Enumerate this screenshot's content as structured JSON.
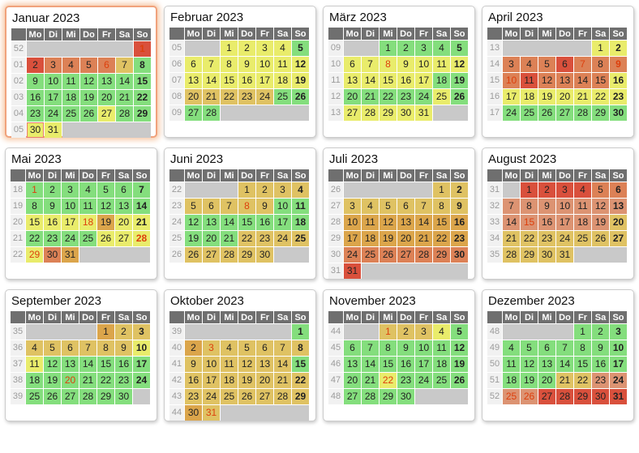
{
  "palette": {
    "header_bg": "#6f6f6f",
    "header_text": "#ffffff",
    "week_bg": "#f1f1f1",
    "week_text": "#9b9b9b",
    "day_text": "#222222",
    "holiday_text": "#dd3f0c",
    "today_border": "#e87d6d",
    "current_month_border": "#f0a27c",
    "current_month_glow": "#f7cbaa",
    "empty_cell": "#c9c9c9",
    "scale": {
      "g": "#84de7d",
      "y": "#e9ec6b",
      "t": "#dfc263",
      "a": "#dba54b",
      "s": "#dc9372",
      "o": "#dc8156",
      "r": "#d9503c"
    }
  },
  "day_headers": [
    "Mo",
    "Di",
    "Mi",
    "Do",
    "Fr",
    "Sa",
    "So"
  ],
  "months": [
    {
      "title": "Januar 2023",
      "current": true,
      "weeks": [
        {
          "n": "52",
          "days": [
            "",
            "",
            "",
            "",
            "",
            "",
            "1|r|h"
          ]
        },
        {
          "n": "01",
          "days": [
            "2|r",
            "3|o",
            "4|o",
            "5|o",
            "6|o|h",
            "7|t",
            "8|g"
          ]
        },
        {
          "n": "02",
          "days": [
            "9|g",
            "10|g",
            "11|g",
            "12|g",
            "13|g",
            "14|g",
            "15|g"
          ]
        },
        {
          "n": "03",
          "days": [
            "16|g",
            "17|g",
            "18|g",
            "19|g",
            "20|g",
            "21|g",
            "22|g"
          ]
        },
        {
          "n": "04",
          "days": [
            "23|g",
            "24|g",
            "25|g",
            "26|g",
            "27|y",
            "28|g",
            "29|g"
          ]
        },
        {
          "n": "05",
          "days": [
            "30|y|n",
            "31|y",
            "",
            "",
            "",
            "",
            ""
          ]
        }
      ]
    },
    {
      "title": "Februar 2023",
      "current": false,
      "weeks": [
        {
          "n": "05",
          "days": [
            "",
            "",
            "1|y",
            "2|y",
            "3|y",
            "4|y",
            "5|g"
          ]
        },
        {
          "n": "06",
          "days": [
            "6|y",
            "7|y",
            "8|y",
            "9|y",
            "10|y",
            "11|y",
            "12|y"
          ]
        },
        {
          "n": "07",
          "days": [
            "13|y",
            "14|y",
            "15|y",
            "16|y",
            "17|y",
            "18|y",
            "19|y"
          ]
        },
        {
          "n": "08",
          "days": [
            "20|t",
            "21|t",
            "22|t",
            "23|t",
            "24|t",
            "25|g",
            "26|g"
          ]
        },
        {
          "n": "09",
          "days": [
            "27|g",
            "28|g",
            "",
            "",
            "",
            "",
            ""
          ]
        }
      ]
    },
    {
      "title": "März 2023",
      "current": false,
      "weeks": [
        {
          "n": "09",
          "days": [
            "",
            "",
            "1|g",
            "2|g",
            "3|g",
            "4|g",
            "5|g"
          ]
        },
        {
          "n": "10",
          "days": [
            "6|y",
            "7|y",
            "8|y|h",
            "9|y",
            "10|y",
            "11|y",
            "12|y"
          ]
        },
        {
          "n": "11",
          "days": [
            "13|y",
            "14|y",
            "15|y",
            "16|y",
            "17|y",
            "18|g",
            "19|g"
          ]
        },
        {
          "n": "12",
          "days": [
            "20|g",
            "21|g",
            "22|g",
            "23|g",
            "24|g",
            "25|y",
            "26|g"
          ]
        },
        {
          "n": "13",
          "days": [
            "27|y",
            "28|y",
            "29|y",
            "30|y",
            "31|y",
            "",
            ""
          ]
        }
      ]
    },
    {
      "title": "April 2023",
      "current": false,
      "weeks": [
        {
          "n": "13",
          "days": [
            "",
            "",
            "",
            "",
            "",
            "1|y",
            "2|y"
          ]
        },
        {
          "n": "14",
          "days": [
            "3|o",
            "4|o",
            "5|o",
            "6|r",
            "7|o|h",
            "8|o",
            "9|o|h"
          ]
        },
        {
          "n": "15",
          "days": [
            "10|o|h",
            "11|r",
            "12|o",
            "13|o",
            "14|o",
            "15|o",
            "16|y"
          ]
        },
        {
          "n": "16",
          "days": [
            "17|y",
            "18|y",
            "19|y",
            "20|y",
            "21|y",
            "22|y",
            "23|y"
          ]
        },
        {
          "n": "17",
          "days": [
            "24|g",
            "25|g",
            "26|g",
            "27|g",
            "28|g",
            "29|g",
            "30|g"
          ]
        }
      ]
    },
    {
      "title": "Mai 2023",
      "current": false,
      "weeks": [
        {
          "n": "18",
          "days": [
            "1|g|h",
            "2|g",
            "3|g",
            "4|g",
            "5|g",
            "6|g",
            "7|g"
          ]
        },
        {
          "n": "19",
          "days": [
            "8|g",
            "9|g",
            "10|g",
            "11|g",
            "12|g",
            "13|g",
            "14|g"
          ]
        },
        {
          "n": "20",
          "days": [
            "15|y",
            "16|y",
            "17|y",
            "18|y|h",
            "19|a",
            "20|y",
            "21|y"
          ]
        },
        {
          "n": "21",
          "days": [
            "22|g",
            "23|g",
            "24|g",
            "25|g",
            "26|y",
            "27|y",
            "28|y|h"
          ]
        },
        {
          "n": "22",
          "days": [
            "29|y|h",
            "30|o",
            "31|a",
            "",
            "",
            "",
            ""
          ]
        }
      ]
    },
    {
      "title": "Juni 2023",
      "current": false,
      "weeks": [
        {
          "n": "22",
          "days": [
            "",
            "",
            "",
            "1|t",
            "2|t",
            "3|t",
            "4|t"
          ]
        },
        {
          "n": "23",
          "days": [
            "5|t",
            "6|t",
            "7|t",
            "8|t|h",
            "9|t",
            "10|g",
            "11|g"
          ]
        },
        {
          "n": "24",
          "days": [
            "12|g",
            "13|g",
            "14|g",
            "15|g",
            "16|g",
            "17|g",
            "18|g"
          ]
        },
        {
          "n": "25",
          "days": [
            "19|g",
            "20|g",
            "21|g",
            "22|t",
            "23|t",
            "24|t",
            "25|t"
          ]
        },
        {
          "n": "26",
          "days": [
            "26|t",
            "27|t",
            "28|t",
            "29|t",
            "30|t",
            "",
            ""
          ]
        }
      ]
    },
    {
      "title": "Juli 2023",
      "current": false,
      "weeks": [
        {
          "n": "26",
          "days": [
            "",
            "",
            "",
            "",
            "",
            "1|t",
            "2|t"
          ]
        },
        {
          "n": "27",
          "days": [
            "3|t",
            "4|t",
            "5|t",
            "6|t",
            "7|t",
            "8|t",
            "9|t"
          ]
        },
        {
          "n": "28",
          "days": [
            "10|a",
            "11|a",
            "12|a",
            "13|a",
            "14|a",
            "15|a",
            "16|a"
          ]
        },
        {
          "n": "29",
          "days": [
            "17|a",
            "18|a",
            "19|a",
            "20|a",
            "21|a",
            "22|a",
            "23|a"
          ]
        },
        {
          "n": "30",
          "days": [
            "24|o",
            "25|o",
            "26|o",
            "27|o",
            "28|o",
            "29|o",
            "30|o"
          ]
        },
        {
          "n": "31",
          "days": [
            "31|r",
            "",
            "",
            "",
            "",
            "",
            ""
          ]
        }
      ]
    },
    {
      "title": "August 2023",
      "current": false,
      "weeks": [
        {
          "n": "31",
          "days": [
            "",
            "1|r",
            "2|r",
            "3|r",
            "4|r",
            "5|o",
            "6|o"
          ]
        },
        {
          "n": "32",
          "days": [
            "7|s",
            "8|s",
            "9|s",
            "10|s",
            "11|s",
            "12|s",
            "13|s"
          ]
        },
        {
          "n": "33",
          "days": [
            "14|s",
            "15|s|h",
            "16|s",
            "17|s",
            "18|s",
            "19|s",
            "20|t"
          ]
        },
        {
          "n": "34",
          "days": [
            "21|t",
            "22|t",
            "23|t",
            "24|t",
            "25|t",
            "26|t",
            "27|t"
          ]
        },
        {
          "n": "35",
          "days": [
            "28|t",
            "29|t",
            "30|t",
            "31|t",
            "",
            "",
            ""
          ]
        }
      ]
    },
    {
      "title": "September 2023",
      "current": false,
      "weeks": [
        {
          "n": "35",
          "days": [
            "",
            "",
            "",
            "",
            "1|a",
            "2|t",
            "3|t"
          ]
        },
        {
          "n": "36",
          "days": [
            "4|t",
            "5|t",
            "6|t",
            "7|t",
            "8|t",
            "9|t",
            "10|y"
          ]
        },
        {
          "n": "37",
          "days": [
            "11|y",
            "12|g",
            "13|g",
            "14|g",
            "15|g",
            "16|g",
            "17|g"
          ]
        },
        {
          "n": "38",
          "days": [
            "18|g",
            "19|g",
            "20|g|h",
            "21|g",
            "22|g",
            "23|g",
            "24|g"
          ]
        },
        {
          "n": "39",
          "days": [
            "25|g",
            "26|g",
            "27|g",
            "28|g",
            "29|g",
            "30|g",
            ""
          ]
        }
      ]
    },
    {
      "title": "Oktober 2023",
      "current": false,
      "weeks": [
        {
          "n": "39",
          "days": [
            "",
            "",
            "",
            "",
            "",
            "",
            "1|g"
          ]
        },
        {
          "n": "40",
          "days": [
            "2|a",
            "3|t|h",
            "4|t",
            "5|t",
            "6|t",
            "7|t",
            "8|t"
          ]
        },
        {
          "n": "41",
          "days": [
            "9|t",
            "10|t",
            "11|t",
            "12|t",
            "13|t",
            "14|t",
            "15|g"
          ]
        },
        {
          "n": "42",
          "days": [
            "16|t",
            "17|t",
            "18|t",
            "19|t",
            "20|t",
            "21|t",
            "22|t"
          ]
        },
        {
          "n": "43",
          "days": [
            "23|t",
            "24|t",
            "25|t",
            "26|t",
            "27|t",
            "28|t",
            "29|t"
          ]
        },
        {
          "n": "44",
          "days": [
            "30|a",
            "31|t|h",
            "",
            "",
            "",
            "",
            ""
          ]
        }
      ]
    },
    {
      "title": "November 2023",
      "current": false,
      "weeks": [
        {
          "n": "44",
          "days": [
            "",
            "",
            "1|t|h",
            "2|t",
            "3|t",
            "4|y",
            "5|g"
          ]
        },
        {
          "n": "45",
          "days": [
            "6|g",
            "7|g",
            "8|g",
            "9|g",
            "10|g",
            "11|g",
            "12|g"
          ]
        },
        {
          "n": "46",
          "days": [
            "13|g",
            "14|g",
            "15|g",
            "16|g",
            "17|g",
            "18|g",
            "19|g"
          ]
        },
        {
          "n": "47",
          "days": [
            "20|g",
            "21|g",
            "22|y|h",
            "23|g",
            "24|g",
            "25|g",
            "26|g"
          ]
        },
        {
          "n": "48",
          "days": [
            "27|g",
            "28|g",
            "29|g",
            "30|g",
            "",
            "",
            ""
          ]
        }
      ]
    },
    {
      "title": "Dezember 2023",
      "current": false,
      "weeks": [
        {
          "n": "48",
          "days": [
            "",
            "",
            "",
            "",
            "1|g",
            "2|g",
            "3|g"
          ]
        },
        {
          "n": "49",
          "days": [
            "4|g",
            "5|g",
            "6|g",
            "7|g",
            "8|g",
            "9|g",
            "10|g"
          ]
        },
        {
          "n": "50",
          "days": [
            "11|g",
            "12|g",
            "13|g",
            "14|g",
            "15|g",
            "16|g",
            "17|g"
          ]
        },
        {
          "n": "51",
          "days": [
            "18|g",
            "19|g",
            "20|g",
            "21|t",
            "22|t",
            "23|s",
            "24|s"
          ]
        },
        {
          "n": "52",
          "days": [
            "25|s|h",
            "26|s|h",
            "27|r",
            "28|r",
            "29|r",
            "30|r",
            "31|r"
          ]
        }
      ]
    }
  ]
}
